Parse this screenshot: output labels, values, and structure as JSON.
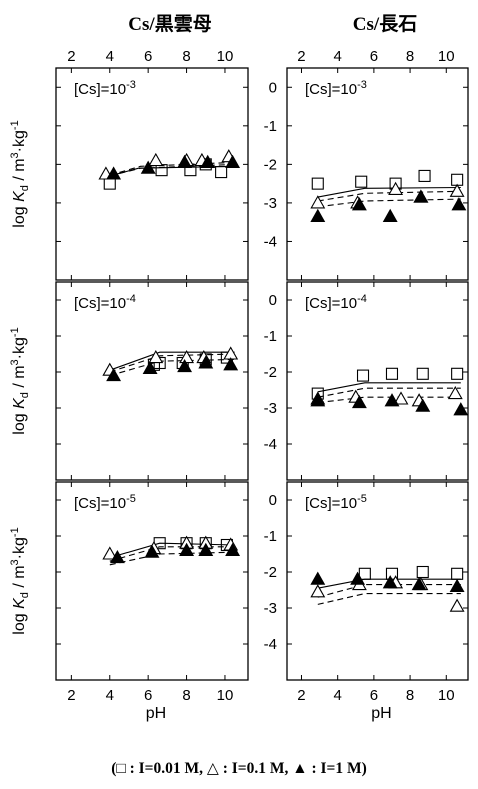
{
  "columns": [
    {
      "title": "Cs/黒雲母"
    },
    {
      "title": "Cs/長石"
    }
  ],
  "y_axis_label": {
    "pre": "log ",
    "k": "K",
    "sub": "d",
    "post": " / m",
    "sup3": "3",
    "mid": "·kg",
    "supm1": "-1"
  },
  "x_axis_label": "pH",
  "footnote": "(□ : I=0.01 M, △ : I=0.1 M, ▲ : I=1 M)",
  "colors": {
    "axis": "#000000",
    "marker": "#000000",
    "fit_line": "#000000"
  },
  "chart_data": [
    {
      "type": "scatter",
      "panel": "Cs/黒雲母 [Cs]=10-3",
      "column": "Cs/黒雲母",
      "label": {
        "base": "[Cs]=10",
        "exp": "-3"
      },
      "xlim": [
        1.2,
        11.2
      ],
      "ylim": [
        -5,
        0.5
      ],
      "x_ticks": [
        2,
        4,
        6,
        8,
        10
      ],
      "y_ticks": [
        0,
        -1,
        -2,
        -3,
        -4
      ],
      "series": [
        {
          "name": "I=0.01 M",
          "marker": "open-square",
          "points": [
            [
              4.0,
              -2.5
            ],
            [
              6.7,
              -2.15
            ],
            [
              8.2,
              -2.15
            ],
            [
              9.0,
              -2.0
            ],
            [
              9.8,
              -2.2
            ]
          ],
          "fit": [
            [
              4.0,
              -2.3
            ],
            [
              5.5,
              -2.1
            ],
            [
              10.5,
              -2.05
            ]
          ],
          "fit_style": "solid"
        },
        {
          "name": "I=0.1 M",
          "marker": "open-triangle",
          "points": [
            [
              3.8,
              -2.25
            ],
            [
              6.4,
              -1.9
            ],
            [
              8.0,
              -1.9
            ],
            [
              8.8,
              -1.9
            ],
            [
              10.2,
              -1.8
            ]
          ],
          "fit": [
            [
              4.0,
              -2.28
            ],
            [
              5.6,
              -2.05
            ],
            [
              10.5,
              -1.95
            ]
          ],
          "fit_style": "dashed"
        },
        {
          "name": "I=1 M",
          "marker": "filled-triangle",
          "points": [
            [
              4.2,
              -2.25
            ],
            [
              6.0,
              -2.1
            ],
            [
              7.9,
              -1.95
            ],
            [
              9.1,
              -1.95
            ],
            [
              10.4,
              -1.95
            ]
          ],
          "fit": [
            [
              4.0,
              -2.3
            ],
            [
              5.6,
              -2.1
            ],
            [
              10.5,
              -2.0
            ]
          ],
          "fit_style": "dashed"
        }
      ]
    },
    {
      "type": "scatter",
      "panel": "Cs/長石 [Cs]=10-3",
      "column": "Cs/長石",
      "label": {
        "base": "[Cs]=10",
        "exp": "-3"
      },
      "xlim": [
        1.2,
        11.2
      ],
      "ylim": [
        -5,
        0.5
      ],
      "x_ticks": [
        2,
        4,
        6,
        8,
        10
      ],
      "y_ticks": [
        0,
        -1,
        -2,
        -3,
        -4
      ],
      "series": [
        {
          "name": "I=0.01 M",
          "marker": "open-square",
          "points": [
            [
              2.9,
              -2.5
            ],
            [
              5.3,
              -2.45
            ],
            [
              7.2,
              -2.5
            ],
            [
              8.8,
              -2.3
            ],
            [
              10.6,
              -2.4
            ]
          ],
          "fit": [
            [
              2.9,
              -2.85
            ],
            [
              5.5,
              -2.62
            ],
            [
              10.8,
              -2.6
            ]
          ],
          "fit_style": "solid"
        },
        {
          "name": "I=0.1 M",
          "marker": "open-triangle",
          "points": [
            [
              2.9,
              -3.0
            ],
            [
              5.1,
              -3.0
            ],
            [
              7.2,
              -2.65
            ],
            [
              8.6,
              -2.85
            ],
            [
              10.6,
              -2.7
            ]
          ],
          "fit": [
            [
              2.9,
              -2.95
            ],
            [
              5.5,
              -2.75
            ],
            [
              10.8,
              -2.7
            ]
          ],
          "fit_style": "dashed"
        },
        {
          "name": "I=1 M",
          "marker": "filled-triangle",
          "points": [
            [
              2.9,
              -3.35
            ],
            [
              5.2,
              -3.05
            ],
            [
              6.9,
              -3.35
            ],
            [
              8.6,
              -2.85
            ],
            [
              10.7,
              -3.05
            ]
          ],
          "fit": [
            [
              2.9,
              -3.1
            ],
            [
              5.5,
              -2.95
            ],
            [
              10.8,
              -2.9
            ]
          ],
          "fit_style": "dashed"
        }
      ]
    },
    {
      "type": "scatter",
      "panel": "Cs/黒雲母 [Cs]=10-4",
      "column": "Cs/黒雲母",
      "label": {
        "base": "[Cs]=10",
        "exp": "-4"
      },
      "xlim": [
        1.2,
        11.2
      ],
      "ylim": [
        -5,
        0.5
      ],
      "x_ticks": [
        2,
        4,
        6,
        8,
        10
      ],
      "y_ticks": [
        0,
        -1,
        -2,
        -3,
        -4
      ],
      "series": [
        {
          "name": "I=0.01 M",
          "marker": "open-square",
          "points": [
            [
              6.3,
              -1.8
            ],
            [
              6.6,
              -1.75
            ],
            [
              7.8,
              -1.75
            ],
            [
              9.0,
              -1.65
            ],
            [
              10.1,
              -1.6
            ]
          ],
          "fit": [
            [
              4.0,
              -1.95
            ],
            [
              6.6,
              -1.45
            ],
            [
              10.5,
              -1.45
            ]
          ],
          "fit_style": "solid"
        },
        {
          "name": "I=0.1 M",
          "marker": "open-triangle",
          "points": [
            [
              4.0,
              -1.95
            ],
            [
              6.4,
              -1.6
            ],
            [
              8.0,
              -1.6
            ],
            [
              8.9,
              -1.6
            ],
            [
              10.3,
              -1.5
            ]
          ],
          "fit": [
            [
              4.0,
              -2.0
            ],
            [
              6.6,
              -1.55
            ],
            [
              10.5,
              -1.5
            ]
          ],
          "fit_style": "dashed"
        },
        {
          "name": "I=1 M",
          "marker": "filled-triangle",
          "points": [
            [
              4.2,
              -2.1
            ],
            [
              6.1,
              -1.9
            ],
            [
              7.9,
              -1.85
            ],
            [
              9.0,
              -1.75
            ],
            [
              10.3,
              -1.8
            ]
          ],
          "fit": [
            [
              4.0,
              -2.1
            ],
            [
              6.6,
              -1.7
            ],
            [
              10.5,
              -1.65
            ]
          ],
          "fit_style": "dashed"
        }
      ]
    },
    {
      "type": "scatter",
      "panel": "Cs/長石 [Cs]=10-4",
      "column": "Cs/長石",
      "label": {
        "base": "[Cs]=10",
        "exp": "-4"
      },
      "xlim": [
        1.2,
        11.2
      ],
      "ylim": [
        -5,
        0.5
      ],
      "x_ticks": [
        2,
        4,
        6,
        8,
        10
      ],
      "y_ticks": [
        0,
        -1,
        -2,
        -3,
        -4
      ],
      "series": [
        {
          "name": "I=0.01 M",
          "marker": "open-square",
          "points": [
            [
              2.9,
              -2.6
            ],
            [
              5.4,
              -2.1
            ],
            [
              7.0,
              -2.05
            ],
            [
              8.7,
              -2.05
            ],
            [
              10.6,
              -2.05
            ]
          ],
          "fit": [
            [
              2.9,
              -2.55
            ],
            [
              5.5,
              -2.3
            ],
            [
              10.8,
              -2.3
            ]
          ],
          "fit_style": "solid"
        },
        {
          "name": "I=0.1 M",
          "marker": "open-triangle",
          "points": [
            [
              2.9,
              -2.75
            ],
            [
              5.0,
              -2.7
            ],
            [
              7.5,
              -2.75
            ],
            [
              8.5,
              -2.8
            ],
            [
              10.5,
              -2.6
            ]
          ],
          "fit": [
            [
              2.9,
              -2.7
            ],
            [
              5.5,
              -2.45
            ],
            [
              10.8,
              -2.45
            ]
          ],
          "fit_style": "dashed"
        },
        {
          "name": "I=1 M",
          "marker": "filled-triangle",
          "points": [
            [
              2.9,
              -2.8
            ],
            [
              5.2,
              -2.85
            ],
            [
              7.0,
              -2.8
            ],
            [
              8.7,
              -2.95
            ],
            [
              10.8,
              -3.05
            ]
          ],
          "fit": [
            [
              2.9,
              -2.85
            ],
            [
              5.5,
              -2.7
            ],
            [
              10.8,
              -2.7
            ]
          ],
          "fit_style": "dashed"
        }
      ]
    },
    {
      "type": "scatter",
      "panel": "Cs/黒雲母 [Cs]=10-5",
      "column": "Cs/黒雲母",
      "label": {
        "base": "[Cs]=10",
        "exp": "-5"
      },
      "xlim": [
        1.2,
        11.2
      ],
      "ylim": [
        -5,
        0.5
      ],
      "x_ticks": [
        2,
        4,
        6,
        8,
        10
      ],
      "y_ticks": [
        0,
        -1,
        -2,
        -3,
        -4
      ],
      "series": [
        {
          "name": "I=0.01 M",
          "marker": "open-square",
          "points": [
            [
              6.6,
              -1.2
            ],
            [
              8.0,
              -1.2
            ],
            [
              9.0,
              -1.2
            ],
            [
              10.1,
              -1.25
            ]
          ],
          "fit": [
            [
              4.0,
              -1.6
            ],
            [
              6.6,
              -1.2
            ],
            [
              10.5,
              -1.25
            ]
          ],
          "fit_style": "solid"
        },
        {
          "name": "I=0.1 M",
          "marker": "open-triangle",
          "points": [
            [
              4.0,
              -1.5
            ],
            [
              6.3,
              -1.35
            ],
            [
              8.0,
              -1.2
            ],
            [
              9.0,
              -1.2
            ],
            [
              10.3,
              -1.25
            ]
          ],
          "fit": [
            [
              4.0,
              -1.7
            ],
            [
              6.6,
              -1.3
            ],
            [
              10.5,
              -1.3
            ]
          ],
          "fit_style": "dashed"
        },
        {
          "name": "I=1 M",
          "marker": "filled-triangle",
          "points": [
            [
              4.4,
              -1.6
            ],
            [
              6.2,
              -1.45
            ],
            [
              8.0,
              -1.4
            ],
            [
              9.0,
              -1.4
            ],
            [
              10.4,
              -1.4
            ]
          ],
          "fit": [
            [
              4.0,
              -1.8
            ],
            [
              6.6,
              -1.5
            ],
            [
              10.5,
              -1.45
            ]
          ],
          "fit_style": "dashed"
        }
      ]
    },
    {
      "type": "scatter",
      "panel": "Cs/長石 [Cs]=10-5",
      "column": "Cs/長石",
      "label": {
        "base": "[Cs]=10",
        "exp": "-5"
      },
      "xlim": [
        1.2,
        11.2
      ],
      "ylim": [
        -5,
        0.5
      ],
      "x_ticks": [
        2,
        4,
        6,
        8,
        10
      ],
      "y_ticks": [
        0,
        -1,
        -2,
        -3,
        -4
      ],
      "series": [
        {
          "name": "I=0.01 M",
          "marker": "open-square",
          "points": [
            [
              5.5,
              -2.05
            ],
            [
              7.0,
              -2.05
            ],
            [
              8.7,
              -2.0
            ],
            [
              10.6,
              -2.05
            ]
          ],
          "fit": [
            [
              2.9,
              -2.45
            ],
            [
              5.5,
              -2.2
            ],
            [
              10.8,
              -2.2
            ]
          ],
          "fit_style": "solid"
        },
        {
          "name": "I=0.1 M",
          "marker": "open-triangle",
          "points": [
            [
              2.9,
              -2.55
            ],
            [
              5.2,
              -2.35
            ],
            [
              7.2,
              -2.3
            ],
            [
              8.6,
              -2.35
            ],
            [
              10.6,
              -2.95
            ]
          ],
          "fit": [
            [
              2.9,
              -2.7
            ],
            [
              5.5,
              -2.35
            ],
            [
              10.8,
              -2.35
            ]
          ],
          "fit_style": "dashed"
        },
        {
          "name": "I=1 M",
          "marker": "filled-triangle",
          "points": [
            [
              2.9,
              -2.2
            ],
            [
              5.1,
              -2.2
            ],
            [
              6.9,
              -2.3
            ],
            [
              8.5,
              -2.35
            ],
            [
              10.6,
              -2.4
            ]
          ],
          "fit": [
            [
              2.9,
              -2.9
            ],
            [
              5.5,
              -2.6
            ],
            [
              10.8,
              -2.6
            ]
          ],
          "fit_style": "dashed"
        }
      ]
    }
  ]
}
